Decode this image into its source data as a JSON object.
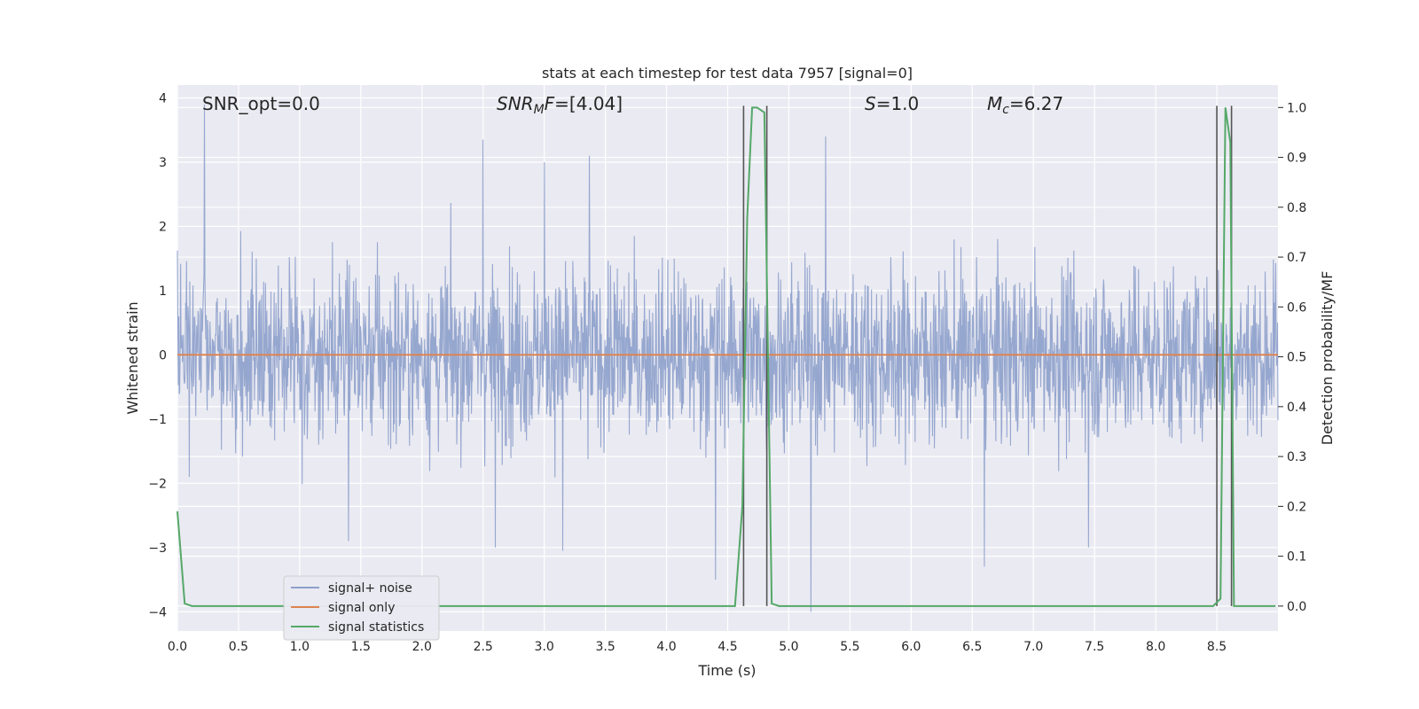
{
  "chart_data": {
    "type": "line",
    "title": "stats at each timestep for test data 7957 [signal=0]",
    "xlabel": "Time (s)",
    "ylabel_left": "Whitened strain",
    "ylabel_right": "Detection probability/MF",
    "xlim": [
      0,
      9
    ],
    "ylim_left": [
      -4.3,
      4.2
    ],
    "ylim_right": [
      -0.05,
      1.045
    ],
    "x_ticks": [
      "0.0",
      "0.5",
      "1.0",
      "1.5",
      "2.0",
      "2.5",
      "3.0",
      "3.5",
      "4.0",
      "4.5",
      "5.0",
      "5.5",
      "6.0",
      "6.5",
      "7.0",
      "7.5",
      "8.0",
      "8.5"
    ],
    "y_ticks_left": [
      "4",
      "3",
      "2",
      "1",
      "0",
      "−1",
      "−2",
      "−3",
      "−4"
    ],
    "y_ticks_right": [
      "1.0",
      "0.9",
      "0.8",
      "0.7",
      "0.6",
      "0.5",
      "0.4",
      "0.3",
      "0.2",
      "0.1",
      "0.0"
    ],
    "grid": true,
    "legend_position": "lower-left",
    "annotations": [
      {
        "text": "SNR_opt=0.0",
        "x": 0.2
      },
      {
        "text": "SNR_M F=[4.04]",
        "x": 2.6
      },
      {
        "text": "S=1.0",
        "x": 5.6
      },
      {
        "text": "M_c=6.27",
        "x": 6.6
      }
    ],
    "series": [
      {
        "name": "signal+ noise",
        "axis": "left",
        "color": "#8da0cb",
        "style": "dense-noise",
        "approx_envelope": [
          -2.0,
          2.0
        ],
        "peak_spikes": [
          {
            "x": 0.22,
            "y": 3.9
          },
          {
            "x": 2.5,
            "y": 3.35
          },
          {
            "x": 3.0,
            "y": 3.0
          },
          {
            "x": 3.37,
            "y": 3.1
          },
          {
            "x": 5.3,
            "y": 3.4
          },
          {
            "x": 4.4,
            "y": -3.5
          },
          {
            "x": 5.18,
            "y": -4.0
          },
          {
            "x": 1.4,
            "y": -2.9
          },
          {
            "x": 2.6,
            "y": -3.0
          },
          {
            "x": 3.15,
            "y": -3.05
          },
          {
            "x": 6.6,
            "y": -3.3
          },
          {
            "x": 7.45,
            "y": -3.0
          }
        ]
      },
      {
        "name": "signal only",
        "axis": "left",
        "color": "#dd8452",
        "x": [
          0,
          9
        ],
        "y": [
          0,
          0
        ]
      },
      {
        "name": "signal statistics",
        "axis": "right",
        "color": "#55a868",
        "x": [
          0,
          0.06,
          0.12,
          4.56,
          4.62,
          4.66,
          4.7,
          4.74,
          4.8,
          4.86,
          4.92,
          8.47,
          8.53,
          8.57,
          8.61,
          8.64,
          8.69,
          8.8,
          8.98
        ],
        "y": [
          0.19,
          0.005,
          0.0,
          0.0,
          0.2,
          0.78,
          1.0,
          1.0,
          0.99,
          0.005,
          0.0,
          0.0,
          0.015,
          1.0,
          0.93,
          0.0,
          0.0,
          0.0,
          0.0
        ]
      }
    ],
    "vertical_markers": [
      4.63,
      4.82,
      8.5,
      8.62
    ]
  }
}
